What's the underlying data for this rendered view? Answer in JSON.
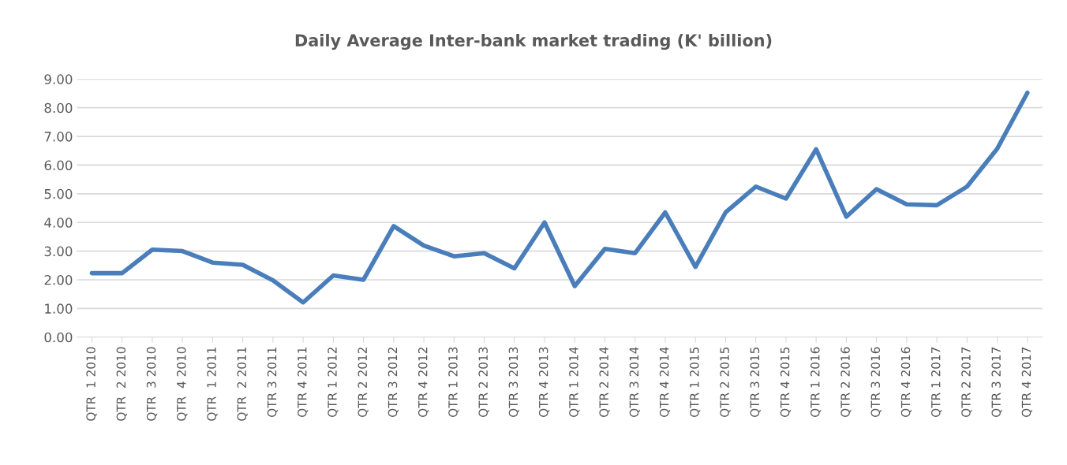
{
  "chart_data": {
    "type": "line",
    "title": "Daily Average Inter-bank market trading (K' billion)",
    "categories": [
      "QTR  1 2010",
      "QTR  2 2010",
      "QTR  3 2010",
      "QTR  4 2010",
      "QTR  1 2011",
      "QTR  2 2011",
      "QTR 3 2011",
      "QTR 4 2011",
      "QTR 1 2012",
      "QTR 2 2012",
      "QTR 3 2012",
      "QTR 4 2012",
      "QTR 1 2013",
      "QTR 2 2013",
      "QTR 3 2013",
      "QTR 4 2013",
      "QTR 1 2014",
      "QTR 2 2014",
      "QTR 3 2014",
      "QTR 4 2014",
      "QTR 1 2015",
      "QTR 2 2015",
      "QTR 3 2015",
      "QTR 4 2015",
      "QTR 1 2016",
      "QTR 2 2016",
      "QTR 3 2016",
      "QTR 4 2016",
      "QTR 1 2017",
      "QTR 2 2017",
      "QTR 3 2017",
      "QTR 4 2017"
    ],
    "series": [
      {
        "color": "#4a7ebb",
        "values": [
          2.23,
          2.23,
          3.05,
          3.0,
          2.6,
          2.52,
          1.98,
          1.21,
          2.15,
          2.0,
          3.87,
          3.19,
          2.82,
          2.93,
          2.4,
          4.0,
          1.78,
          3.08,
          2.93,
          4.35,
          2.45,
          4.35,
          5.25,
          4.83,
          6.55,
          4.2,
          5.16,
          4.63,
          4.6,
          5.25,
          6.57,
          8.52
        ]
      }
    ],
    "ylim": [
      0,
      9
    ],
    "yticks": [
      {
        "value": 0,
        "label": "0.00"
      },
      {
        "value": 1,
        "label": "1.00"
      },
      {
        "value": 2,
        "label": "2.00"
      },
      {
        "value": 3,
        "label": "3.00"
      },
      {
        "value": 4,
        "label": "4.00"
      },
      {
        "value": 5,
        "label": "5.00"
      },
      {
        "value": 6,
        "label": "6.00"
      },
      {
        "value": 7,
        "label": "7.00"
      },
      {
        "value": 8,
        "label": "8.00"
      },
      {
        "value": 9,
        "label": "9.00"
      }
    ],
    "grid": "y",
    "legend": false,
    "marker": "none",
    "line_style": "solid"
  }
}
